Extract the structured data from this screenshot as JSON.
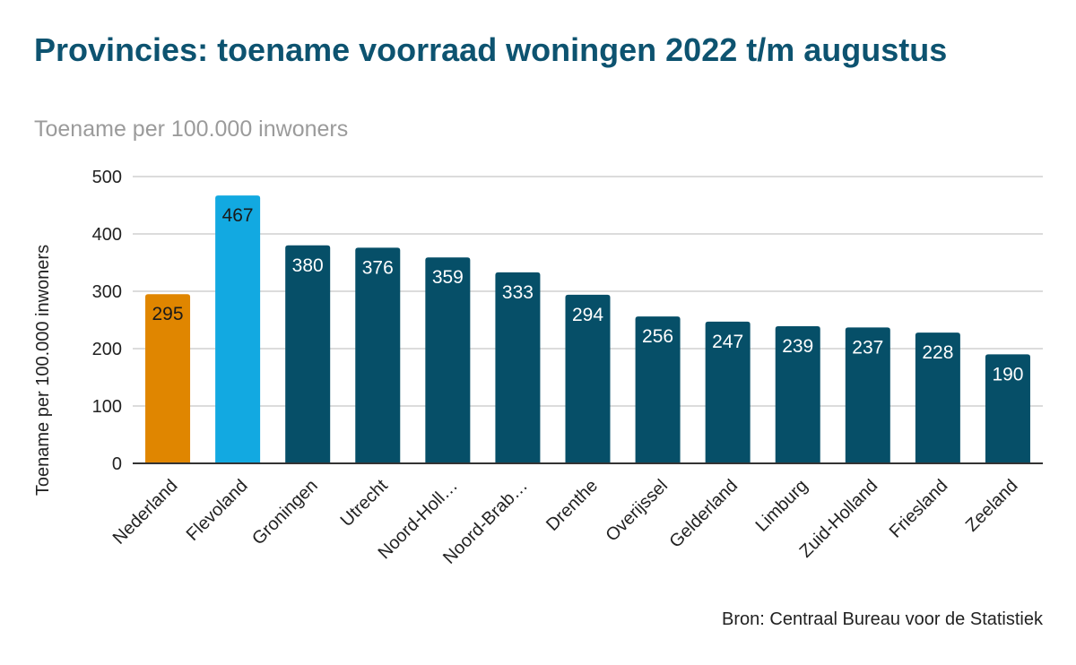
{
  "title": "Provincies: toename voorraad woningen 2022 t/m augustus",
  "subtitle": "Toename per 100.000 inwoners",
  "source": "Bron: Centraal Bureau voor de Statistiek",
  "chart_data": {
    "type": "bar",
    "title": "Provincies: toename voorraad woningen 2022 t/m augustus",
    "subtitle": "Toename per 100.000 inwoners",
    "xlabel": "",
    "ylabel": "Toename per 100.000 inwoners",
    "ylim": [
      0,
      500
    ],
    "yticks": [
      0,
      100,
      200,
      300,
      400,
      500
    ],
    "grid": true,
    "categories": [
      "Nederland",
      "Flevoland",
      "Groningen",
      "Utrecht",
      "Noord-Holl…",
      "Noord-Brab…",
      "Drenthe",
      "Overijssel",
      "Gelderland",
      "Limburg",
      "Zuid-Holland",
      "Friesland",
      "Zeeland"
    ],
    "values": [
      295,
      467,
      380,
      376,
      359,
      333,
      294,
      256,
      247,
      239,
      237,
      228,
      190
    ],
    "colors": [
      "#e08600",
      "#12a9e1",
      "#064f68",
      "#064f68",
      "#064f68",
      "#064f68",
      "#064f68",
      "#064f68",
      "#064f68",
      "#064f68",
      "#064f68",
      "#064f68",
      "#064f68"
    ],
    "label_colors": [
      "#1a1a1a",
      "#1a1a1a",
      "#ffffff",
      "#ffffff",
      "#ffffff",
      "#ffffff",
      "#ffffff",
      "#ffffff",
      "#ffffff",
      "#ffffff",
      "#ffffff",
      "#ffffff",
      "#ffffff"
    ],
    "gridline_color": "#d0d0d0",
    "axis_color": "#333333"
  }
}
